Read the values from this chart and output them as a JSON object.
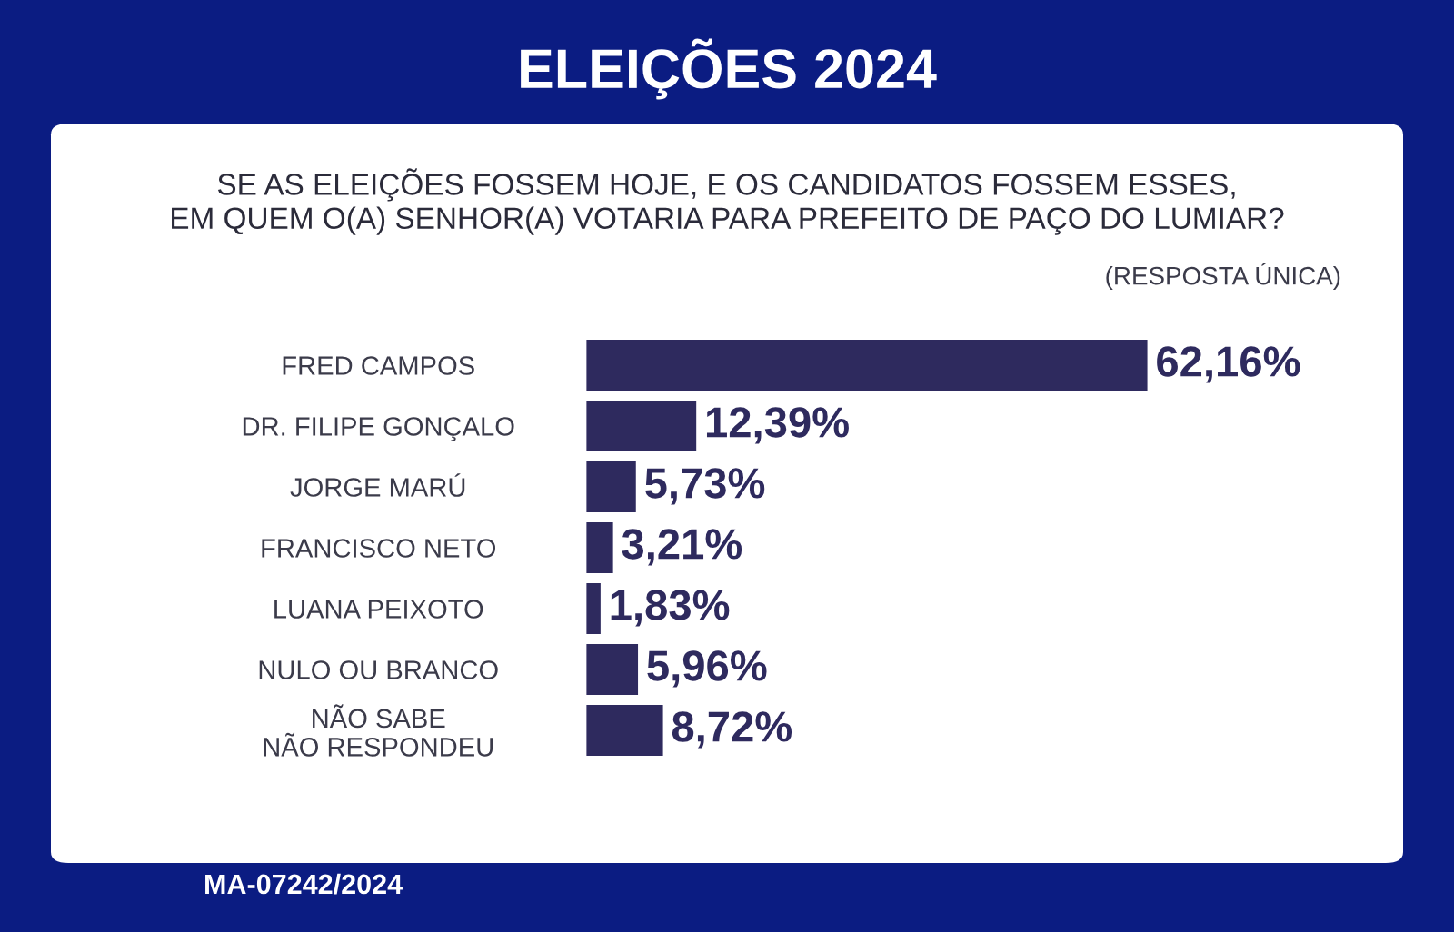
{
  "chart_data": {
    "type": "bar",
    "orientation": "horizontal",
    "title": "ELEIÇÕES 2024",
    "subtitle": "SE AS ELEIÇÕES FOSSEM HOJE, E OS CANDIDATOS FOSSEM ESSES,\nEM QUEM O(A) SENHOR(A) VOTARIA PARA PREFEITO DE PAÇO DO LUMIAR?",
    "annotations": [
      "(RESPOSTA ÚNICA)",
      "MA-07242/2024"
    ],
    "categories": [
      "FRED CAMPOS",
      "DR. FILIPE GONÇALO",
      "JORGE MARÚ",
      "FRANCISCO NETO",
      "LUANA PEIXOTO",
      "NULO OU BRANCO",
      "NÃO SABE\nNÃO RESPONDEU"
    ],
    "values": [
      62.16,
      12.39,
      5.73,
      3.21,
      1.83,
      5.96,
      8.72
    ],
    "value_labels": [
      "62,16%",
      "12,39%",
      "5,73%",
      "3,21%",
      "1,83%",
      "5,96%",
      "8,72%"
    ],
    "color": "#2e2a5e"
  }
}
